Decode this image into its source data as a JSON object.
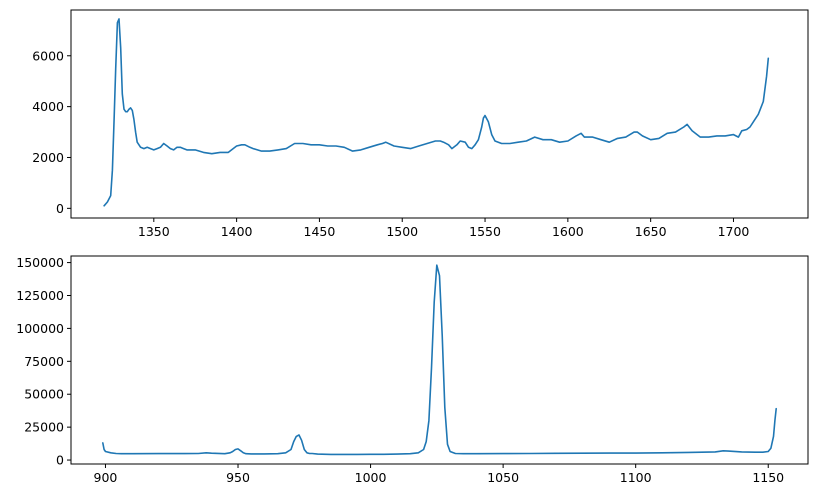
{
  "chart_data": [
    {
      "type": "line",
      "title": "",
      "xlabel": "",
      "ylabel": "",
      "xlim": [
        1300,
        1745
      ],
      "ylim": [
        -380,
        7800
      ],
      "xticks": [
        1350,
        1400,
        1450,
        1500,
        1550,
        1600,
        1650,
        1700
      ],
      "yticks": [
        0,
        2000,
        4000,
        6000
      ],
      "grid": false,
      "color": "#1f77b4",
      "series": [
        {
          "x": [
            1320,
            1322,
            1324,
            1325,
            1326,
            1327,
            1328,
            1329,
            1330,
            1331,
            1332,
            1333,
            1334,
            1335,
            1336,
            1337,
            1338,
            1339,
            1340,
            1342,
            1344,
            1346,
            1348,
            1350,
            1352,
            1354,
            1356,
            1358,
            1360,
            1362,
            1364,
            1366,
            1368,
            1370,
            1375,
            1380,
            1385,
            1390,
            1395,
            1400,
            1403,
            1405,
            1408,
            1410,
            1415,
            1420,
            1425,
            1430,
            1435,
            1440,
            1445,
            1450,
            1455,
            1460,
            1465,
            1470,
            1475,
            1480,
            1485,
            1488,
            1490,
            1495,
            1500,
            1505,
            1510,
            1515,
            1520,
            1523,
            1525,
            1528,
            1530,
            1533,
            1535,
            1538,
            1540,
            1542,
            1544,
            1546,
            1548,
            1549,
            1550,
            1552,
            1554,
            1556,
            1558,
            1560,
            1565,
            1570,
            1575,
            1580,
            1585,
            1590,
            1595,
            1600,
            1605,
            1608,
            1610,
            1615,
            1620,
            1625,
            1630,
            1635,
            1640,
            1642,
            1645,
            1650,
            1655,
            1660,
            1665,
            1670,
            1672,
            1675,
            1680,
            1685,
            1690,
            1695,
            1700,
            1703,
            1705,
            1708,
            1710,
            1712,
            1715,
            1718,
            1720,
            1721
          ],
          "y": [
            100,
            250,
            500,
            1500,
            3500,
            5500,
            7300,
            7450,
            6300,
            4500,
            3900,
            3800,
            3800,
            3900,
            3950,
            3850,
            3500,
            3000,
            2600,
            2400,
            2350,
            2400,
            2350,
            2300,
            2350,
            2400,
            2550,
            2450,
            2350,
            2300,
            2400,
            2400,
            2350,
            2300,
            2300,
            2200,
            2150,
            2200,
            2200,
            2450,
            2500,
            2500,
            2400,
            2350,
            2250,
            2250,
            2300,
            2350,
            2550,
            2550,
            2500,
            2500,
            2450,
            2450,
            2400,
            2250,
            2300,
            2400,
            2500,
            2550,
            2600,
            2450,
            2400,
            2350,
            2450,
            2550,
            2650,
            2650,
            2600,
            2500,
            2350,
            2500,
            2650,
            2600,
            2400,
            2350,
            2500,
            2700,
            3200,
            3550,
            3650,
            3400,
            2900,
            2650,
            2600,
            2550,
            2550,
            2600,
            2650,
            2800,
            2700,
            2700,
            2600,
            2650,
            2850,
            2950,
            2800,
            2800,
            2700,
            2600,
            2750,
            2800,
            3000,
            3000,
            2850,
            2700,
            2750,
            2950,
            3000,
            3200,
            3300,
            3050,
            2800,
            2800,
            2850,
            2850,
            2900,
            2800,
            3050,
            3100,
            3200,
            3400,
            3700,
            4200,
            5200,
            5900
          ]
        }
      ]
    },
    {
      "type": "line",
      "title": "",
      "xlabel": "",
      "ylabel": "",
      "xlim": [
        887,
        1165
      ],
      "ylim": [
        -3000,
        155000
      ],
      "xticks": [
        900,
        950,
        1000,
        1050,
        1100,
        1150
      ],
      "yticks": [
        0,
        25000,
        50000,
        75000,
        100000,
        125000,
        150000
      ],
      "grid": false,
      "color": "#1f77b4",
      "series": [
        {
          "x": [
            899,
            899.5,
            900,
            902,
            904,
            906,
            910,
            920,
            930,
            935,
            938,
            940,
            945,
            947,
            948,
            949,
            950,
            951,
            952,
            953,
            955,
            960,
            965,
            968,
            970,
            971,
            972,
            973,
            974,
            975,
            976,
            977,
            978,
            980,
            985,
            990,
            995,
            1000,
            1005,
            1010,
            1015,
            1018,
            1020,
            1021,
            1022,
            1023,
            1024,
            1025,
            1026,
            1027,
            1028,
            1029,
            1030,
            1032,
            1035,
            1040,
            1050,
            1060,
            1070,
            1080,
            1090,
            1100,
            1110,
            1120,
            1130,
            1133,
            1135,
            1140,
            1145,
            1148,
            1150,
            1151,
            1152,
            1152.5,
            1153
          ],
          "y": [
            13000,
            8000,
            6500,
            5500,
            5000,
            4800,
            4800,
            4900,
            4900,
            5000,
            5500,
            5200,
            4800,
            5500,
            6500,
            8000,
            8500,
            7000,
            5500,
            4800,
            4700,
            4700,
            4800,
            5500,
            8000,
            14000,
            18000,
            19000,
            15000,
            8000,
            5500,
            5000,
            5000,
            4500,
            4300,
            4300,
            4300,
            4400,
            4400,
            4500,
            4800,
            5500,
            8000,
            14000,
            30000,
            70000,
            120000,
            148000,
            140000,
            95000,
            40000,
            12000,
            6500,
            5000,
            4800,
            4800,
            4900,
            5000,
            5100,
            5200,
            5300,
            5300,
            5500,
            5800,
            6200,
            7000,
            6800,
            6200,
            6000,
            6000,
            6500,
            9000,
            18000,
            30000,
            39000
          ]
        }
      ]
    }
  ]
}
